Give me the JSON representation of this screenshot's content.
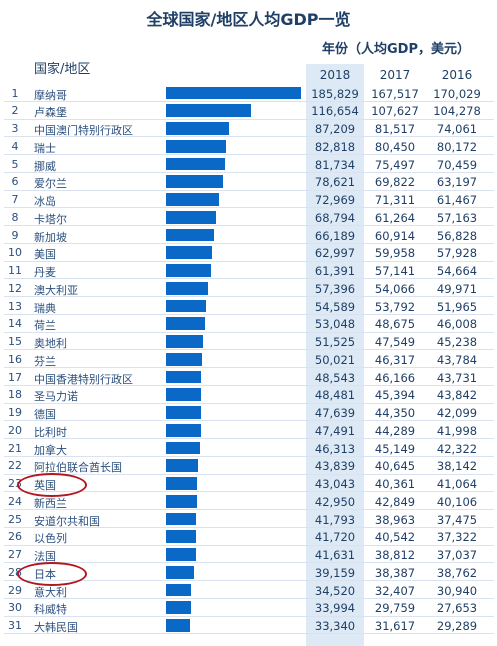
{
  "chart_data": {
    "type": "table",
    "title": "全球国家/地区人均GDP一览",
    "unit_label": "年份（人均GDP，美元）",
    "country_header": "国家/地区",
    "years": [
      "2018",
      "2017",
      "2016"
    ],
    "bar_series": "2018",
    "highlighted_year": "2018",
    "circled_ranks": [
      "23",
      "28"
    ],
    "colors": {
      "bar": "#0a68c7",
      "highlight_column": "#ddeaf6",
      "circle": "#b3171e",
      "text": "#1f3f66"
    },
    "rows": [
      {
        "rank": "1",
        "name": "摩纳哥",
        "v2018": 185829,
        "v2017": 167517,
        "v2016": 170029
      },
      {
        "rank": "2",
        "name": "卢森堡",
        "v2018": 116654,
        "v2017": 107627,
        "v2016": 104278
      },
      {
        "rank": "3",
        "name": "中国澳门特别行政区",
        "v2018": 87209,
        "v2017": 81517,
        "v2016": 74061
      },
      {
        "rank": "4",
        "name": "瑞士",
        "v2018": 82818,
        "v2017": 80450,
        "v2016": 80172
      },
      {
        "rank": "5",
        "name": "挪威",
        "v2018": 81734,
        "v2017": 75497,
        "v2016": 70459
      },
      {
        "rank": "6",
        "name": "爱尔兰",
        "v2018": 78621,
        "v2017": 69822,
        "v2016": 63197
      },
      {
        "rank": "7",
        "name": "冰岛",
        "v2018": 72969,
        "v2017": 71311,
        "v2016": 61467
      },
      {
        "rank": "8",
        "name": "卡塔尔",
        "v2018": 68794,
        "v2017": 61264,
        "v2016": 57163
      },
      {
        "rank": "9",
        "name": "新加坡",
        "v2018": 66189,
        "v2017": 60914,
        "v2016": 56828
      },
      {
        "rank": "10",
        "name": "美国",
        "v2018": 62997,
        "v2017": 59958,
        "v2016": 57928
      },
      {
        "rank": "11",
        "name": "丹麦",
        "v2018": 61391,
        "v2017": 57141,
        "v2016": 54664
      },
      {
        "rank": "12",
        "name": "澳大利亚",
        "v2018": 57396,
        "v2017": 54066,
        "v2016": 49971
      },
      {
        "rank": "13",
        "name": "瑞典",
        "v2018": 54589,
        "v2017": 53792,
        "v2016": 51965
      },
      {
        "rank": "14",
        "name": "荷兰",
        "v2018": 53048,
        "v2017": 48675,
        "v2016": 46008
      },
      {
        "rank": "15",
        "name": "奥地利",
        "v2018": 51525,
        "v2017": 47549,
        "v2016": 45238
      },
      {
        "rank": "16",
        "name": "芬兰",
        "v2018": 50021,
        "v2017": 46317,
        "v2016": 43784
      },
      {
        "rank": "17",
        "name": "中国香港特别行政区",
        "v2018": 48543,
        "v2017": 46166,
        "v2016": 43731
      },
      {
        "rank": "18",
        "name": "圣马力诺",
        "v2018": 48481,
        "v2017": 45394,
        "v2016": 43842
      },
      {
        "rank": "19",
        "name": "德国",
        "v2018": 47639,
        "v2017": 44350,
        "v2016": 42099
      },
      {
        "rank": "20",
        "name": "比利时",
        "v2018": 47491,
        "v2017": 44289,
        "v2016": 41998
      },
      {
        "rank": "21",
        "name": "加拿大",
        "v2018": 46313,
        "v2017": 45149,
        "v2016": 42322
      },
      {
        "rank": "22",
        "name": "阿拉伯联合酋长国",
        "v2018": 43839,
        "v2017": 40645,
        "v2016": 38142
      },
      {
        "rank": "23",
        "name": "英国",
        "v2018": 43043,
        "v2017": 40361,
        "v2016": 41064
      },
      {
        "rank": "24",
        "name": "新西兰",
        "v2018": 42950,
        "v2017": 42849,
        "v2016": 40106
      },
      {
        "rank": "25",
        "name": "安道尔共和国",
        "v2018": 41793,
        "v2017": 38963,
        "v2016": 37475
      },
      {
        "rank": "26",
        "name": "以色列",
        "v2018": 41720,
        "v2017": 40542,
        "v2016": 37322
      },
      {
        "rank": "27",
        "name": "法国",
        "v2018": 41631,
        "v2017": 38812,
        "v2016": 37037
      },
      {
        "rank": "28",
        "name": "日本",
        "v2018": 39159,
        "v2017": 38387,
        "v2016": 38762
      },
      {
        "rank": "29",
        "name": "意大利",
        "v2018": 34520,
        "v2017": 32407,
        "v2016": 30940
      },
      {
        "rank": "30",
        "name": "科威特",
        "v2018": 33994,
        "v2017": 29759,
        "v2016": 27653
      },
      {
        "rank": "31",
        "name": "大韩民国",
        "v2018": 33340,
        "v2017": 31617,
        "v2016": 29289
      }
    ]
  }
}
